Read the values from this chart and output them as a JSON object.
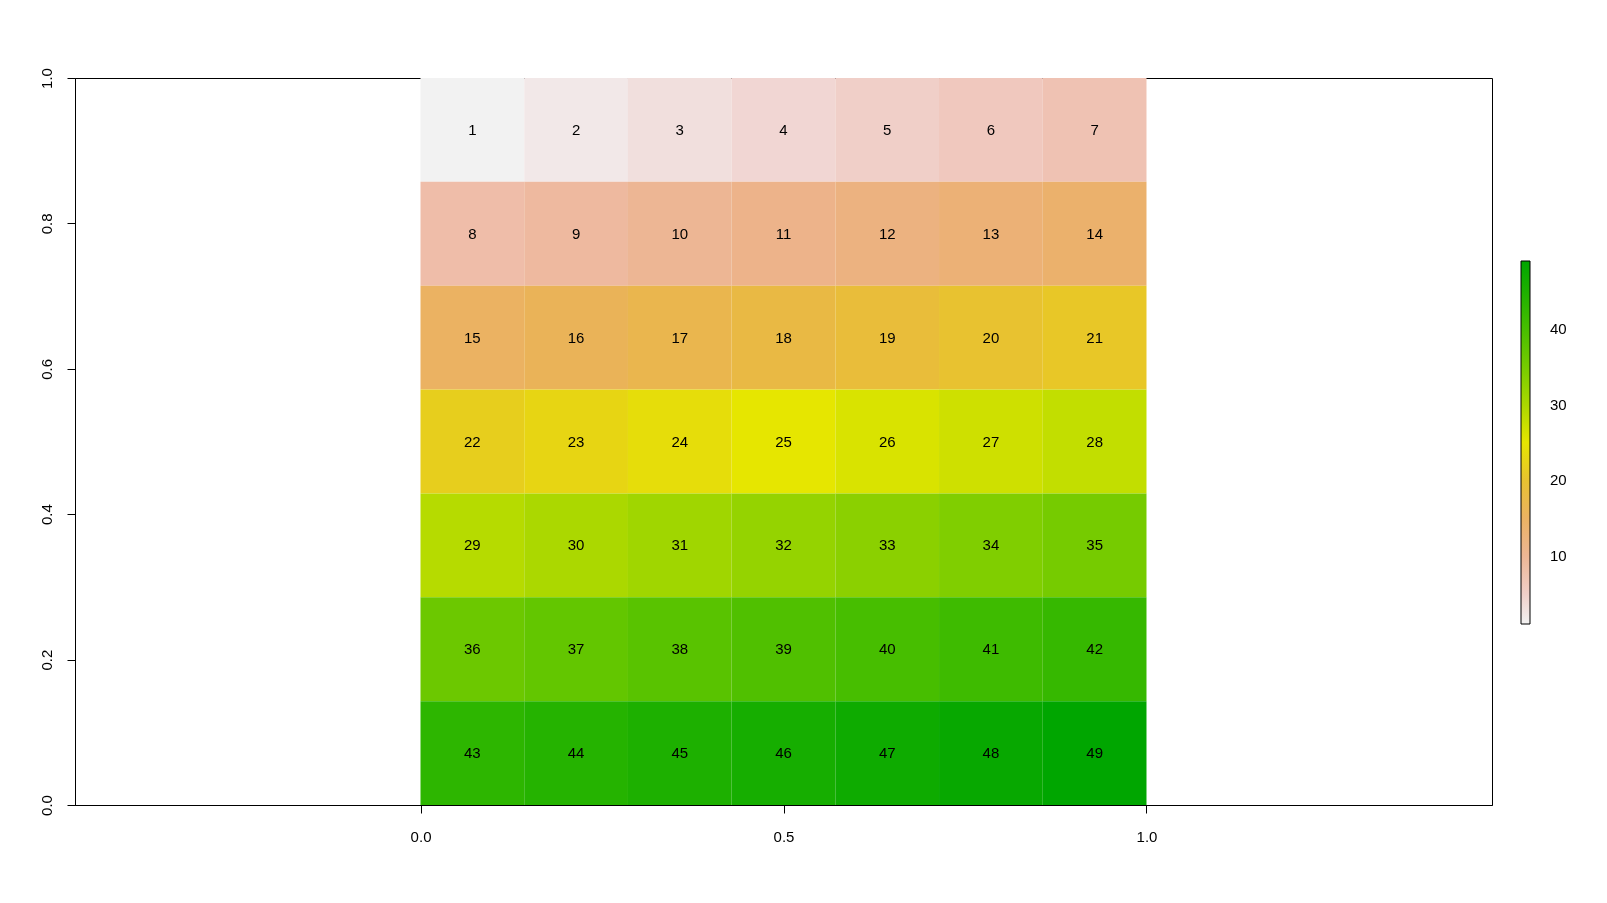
{
  "chart_data": {
    "type": "heatmap",
    "x": [
      0.0714,
      0.2143,
      0.3571,
      0.5,
      0.6429,
      0.7857,
      0.9286
    ],
    "cells": [
      [
        1,
        2,
        3,
        4,
        5,
        6,
        7
      ],
      [
        8,
        9,
        10,
        11,
        12,
        13,
        14
      ],
      [
        15,
        16,
        17,
        18,
        19,
        20,
        21
      ],
      [
        22,
        23,
        24,
        25,
        26,
        27,
        28
      ],
      [
        29,
        30,
        31,
        32,
        33,
        34,
        35
      ],
      [
        36,
        37,
        38,
        39,
        40,
        41,
        42
      ],
      [
        43,
        44,
        45,
        46,
        47,
        48,
        49
      ]
    ],
    "colors": [
      "#f2f2f2",
      "#f2e8e8",
      "#f1dfdd",
      "#f1d6d3",
      "#f0cfc8",
      "#f0c8be",
      "#efc2b3",
      "#efbda9",
      "#eeb99f",
      "#edb694",
      "#edb38a",
      "#ecb280",
      "#ecb176",
      "#ebb16c",
      "#ebb262",
      "#eab358",
      "#eab64e",
      "#e9b944",
      "#e9bd3a",
      "#e8c230",
      "#e8c727",
      "#e7ce1d",
      "#e7d513",
      "#e6dd0a",
      "#e6e600",
      "#d9e300",
      "#cee000",
      "#c2de00",
      "#b6db00",
      "#abd800",
      "#a0d600",
      "#95d300",
      "#8bd000",
      "#80ce00",
      "#76cb00",
      "#6cc800",
      "#63c600",
      "#59c300",
      "#50c000",
      "#47be00",
      "#3ebb00",
      "#36b800",
      "#2db600",
      "#25b300",
      "#1db000",
      "#16ae00",
      "#0eab00",
      "#07a800",
      "#00a600"
    ],
    "clim": [
      1,
      49
    ],
    "cticks": [
      10,
      20,
      30,
      40
    ],
    "xlim": [
      -0.476,
      1.476
    ],
    "ylim": [
      0,
      1
    ],
    "xticks": [
      {
        "value": 0,
        "label": "0.0"
      },
      {
        "value": 0.5,
        "label": "0.5"
      },
      {
        "value": 1,
        "label": "1.0"
      }
    ],
    "yticks": [
      {
        "value": 0,
        "label": "0.0"
      },
      {
        "value": 0.2,
        "label": "0.2"
      },
      {
        "value": 0.4,
        "label": "0.4"
      },
      {
        "value": 0.6,
        "label": "0.6"
      },
      {
        "value": 0.8,
        "label": "0.8"
      },
      {
        "value": 1,
        "label": "1.0"
      }
    ],
    "data_labels": true
  }
}
